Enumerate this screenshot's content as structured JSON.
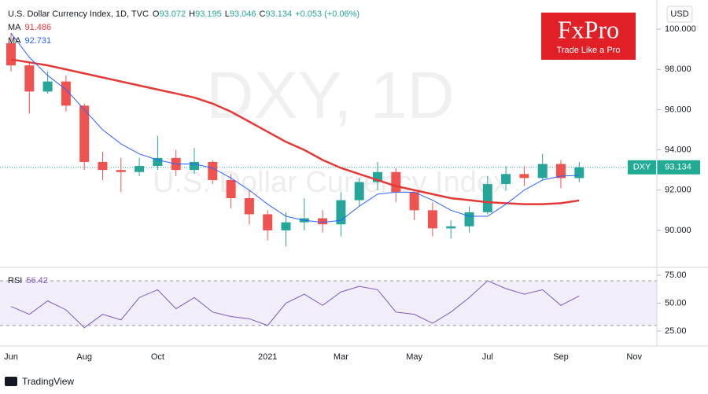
{
  "header": {
    "symbol": "U.S. Dollar Currency Index, 1D, TVC",
    "quote": [
      {
        "key": "O",
        "value": 93.072
      },
      {
        "key": "H",
        "value": 93.195
      },
      {
        "key": "L",
        "value": 93.046
      },
      {
        "key": "C",
        "value": 93.134
      }
    ],
    "change": "+0.053 (+0.06%)"
  },
  "watermark": {
    "big": "DXY, 1D",
    "small": "U.S. Dollar Currency Index"
  },
  "logo": {
    "name": "FxPro",
    "slogan": "Trade Like a Pro"
  },
  "currency_button": "USD",
  "footer": "TradingView",
  "chart_data": [
    {
      "type": "candlestick",
      "categories": [
        "Jun",
        null,
        null,
        null,
        "Aug",
        null,
        null,
        null,
        "Oct",
        null,
        null,
        null,
        null,
        null,
        "2021",
        null,
        null,
        null,
        "Mar",
        null,
        null,
        null,
        "May",
        null,
        null,
        null,
        "Jul",
        null,
        null,
        null,
        "Sep",
        null,
        null,
        null,
        "Nov",
        null
      ],
      "up_color": "#26a69a",
      "down_color": "#ef5350",
      "open": [
        99.3,
        98.2,
        96.9,
        97.4,
        96.2,
        93.4,
        93.0,
        92.9,
        93.2,
        93.6,
        93.0,
        93.4,
        92.5,
        91.6,
        90.8,
        90.0,
        90.4,
        90.6,
        90.3,
        91.5,
        92.4,
        92.9,
        91.9,
        91.0,
        90.1,
        90.2,
        90.9,
        92.3,
        92.8,
        92.6,
        93.3,
        92.6,
        null,
        null,
        null,
        null
      ],
      "high": [
        99.8,
        98.4,
        97.9,
        97.7,
        96.3,
        93.9,
        93.6,
        93.6,
        94.7,
        94.0,
        94.1,
        93.5,
        92.8,
        92.0,
        91.0,
        90.9,
        91.6,
        91.0,
        91.9,
        92.6,
        93.4,
        93.1,
        92.0,
        91.4,
        90.5,
        91.2,
        92.7,
        93.2,
        93.2,
        93.8,
        93.5,
        93.4,
        null,
        null,
        null,
        null
      ],
      "low": [
        97.9,
        95.8,
        96.8,
        95.9,
        93.0,
        92.5,
        91.9,
        92.7,
        93.0,
        92.7,
        92.8,
        92.3,
        91.1,
        90.3,
        89.5,
        89.2,
        90.0,
        89.9,
        89.7,
        91.2,
        92.0,
        91.4,
        90.5,
        89.7,
        89.6,
        89.9,
        90.8,
        92.0,
        92.2,
        92.5,
        92.1,
        92.4,
        null,
        null,
        null,
        null
      ],
      "close": [
        98.2,
        96.9,
        97.4,
        96.2,
        93.4,
        93.0,
        92.9,
        93.2,
        93.6,
        93.0,
        93.4,
        92.5,
        91.6,
        90.8,
        90.0,
        90.4,
        90.6,
        90.3,
        91.5,
        92.4,
        92.9,
        91.9,
        91.0,
        90.1,
        90.2,
        90.9,
        92.3,
        92.8,
        92.6,
        93.3,
        92.6,
        93.134,
        null,
        null,
        null,
        null
      ],
      "ma": [
        {
          "name": "MA",
          "color": "#e53935",
          "width": 2.5,
          "values": [
            98.5,
            98.35,
            98.2,
            98.0,
            97.8,
            97.6,
            97.4,
            97.2,
            97.0,
            96.8,
            96.6,
            96.3,
            95.9,
            95.4,
            94.9,
            94.4,
            94.0,
            93.5,
            93.1,
            92.8,
            92.5,
            92.2,
            92.0,
            91.8,
            91.6,
            91.5,
            91.4,
            91.35,
            91.3,
            91.3,
            91.35,
            91.486,
            null,
            null,
            null,
            null
          ]
        },
        {
          "name": "MA",
          "color": "#2962ff",
          "width": 1,
          "values": [
            99.8,
            98.6,
            97.7,
            97.0,
            96.0,
            95.0,
            94.3,
            93.8,
            93.5,
            93.3,
            93.3,
            93.1,
            92.6,
            92.0,
            91.3,
            90.7,
            90.5,
            90.4,
            90.5,
            91.2,
            91.8,
            91.9,
            91.9,
            91.5,
            91.0,
            90.7,
            90.7,
            91.3,
            92.0,
            92.5,
            92.7,
            92.731,
            null,
            null,
            null,
            null
          ]
        }
      ],
      "last_price": {
        "name": "DXY",
        "value": 93.134,
        "color": "#22ab94"
      },
      "ylim": [
        88.16,
        101.45
      ],
      "yticks": [
        {
          "value": 90,
          "label": "90.000"
        },
        {
          "value": 92,
          "label": "92.000"
        },
        {
          "value": 94,
          "label": "94.000"
        },
        {
          "value": 96,
          "label": "96.000"
        },
        {
          "value": 98,
          "label": "98.000"
        },
        {
          "value": 100,
          "label": "100.000"
        }
      ]
    },
    {
      "type": "line",
      "name": "RSI",
      "color": "#7e57c2",
      "band": [
        30,
        70
      ],
      "values": [
        47,
        40,
        52,
        44,
        28,
        40,
        35,
        55,
        62,
        45,
        55,
        42,
        38,
        36,
        30,
        50,
        58,
        48,
        60,
        65,
        62,
        42,
        40,
        32,
        42,
        55,
        70,
        63,
        58,
        62,
        48,
        56.42,
        null,
        null,
        null,
        null
      ],
      "ylim": [
        11.6,
        82.0
      ],
      "yticks": [
        {
          "value": 25,
          "label": "25.00"
        },
        {
          "value": 50,
          "label": "50.00"
        },
        {
          "value": 75,
          "label": "75.00"
        }
      ]
    }
  ]
}
